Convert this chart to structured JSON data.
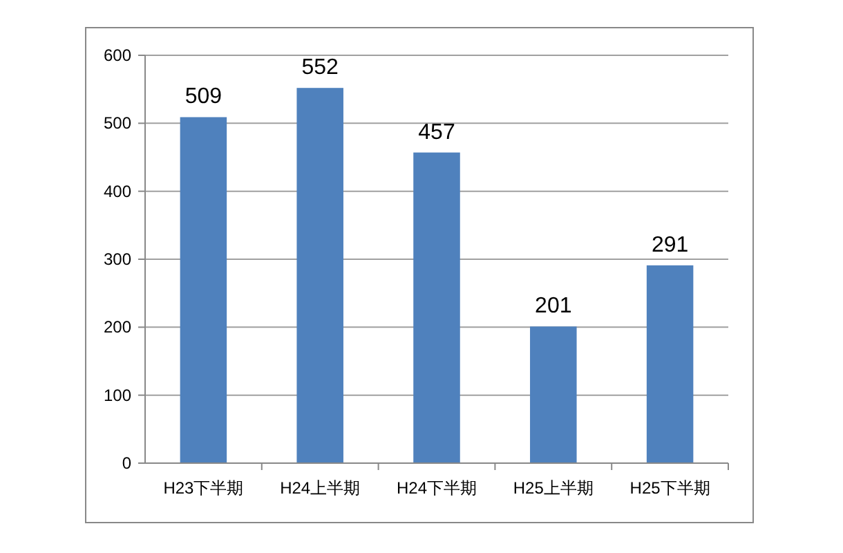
{
  "chart_data": {
    "type": "bar",
    "categories": [
      "H23下半期",
      "H24上半期",
      "H24下半期",
      "H25上半期",
      "H25下半期"
    ],
    "values": [
      509,
      552,
      457,
      201,
      291
    ],
    "color": "#4f81bd",
    "ylim": [
      0,
      600
    ],
    "yticks": [
      0,
      100,
      200,
      300,
      400,
      500,
      600
    ],
    "grid": "y",
    "data_labels": true
  }
}
